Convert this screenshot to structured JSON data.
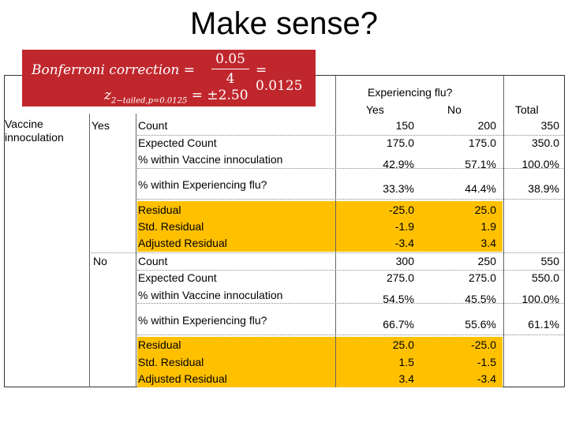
{
  "title": "Make sense?",
  "formula": {
    "line1_lhs": "Bonferroni correction =",
    "numerator": "0.05",
    "denominator": "4",
    "line1_result": "= 0.0125",
    "line2_z": "z",
    "line2_sub": "2−tailed,p=0.0125",
    "line2_rhs": "= ±2.50"
  },
  "header": {
    "group": "Experiencing flu?",
    "yes": "Yes",
    "no": "No",
    "total": "Total"
  },
  "row_var": "Vaccine innoculation",
  "groups": [
    {
      "label": "Yes",
      "rows": [
        {
          "label": "Count",
          "yes": "150",
          "no": "200",
          "total": "350"
        },
        {
          "label": "Expected Count",
          "yes": "175.0",
          "no": "175.0",
          "total": "350.0"
        },
        {
          "label": "% within Vaccine innoculation",
          "yes": "42.9%",
          "no": "57.1%",
          "total": "100.0%"
        },
        {
          "label": "% within Experiencing flu?",
          "yes": "33.3%",
          "no": "44.4%",
          "total": "38.9%"
        },
        {
          "label": "Residual",
          "yes": "-25.0",
          "no": "25.0",
          "total": ""
        },
        {
          "label": "Std. Residual",
          "yes": "-1.9",
          "no": "1.9",
          "total": ""
        },
        {
          "label": "Adjusted Residual",
          "yes": "-3.4",
          "no": "3.4",
          "total": ""
        }
      ]
    },
    {
      "label": "No",
      "rows": [
        {
          "label": "Count",
          "yes": "300",
          "no": "250",
          "total": "550"
        },
        {
          "label": "Expected Count",
          "yes": "275.0",
          "no": "275.0",
          "total": "550.0"
        },
        {
          "label": "% within Vaccine innoculation",
          "yes": "54.5%",
          "no": "45.5%",
          "total": "100.0%"
        },
        {
          "label": "% within Experiencing flu?",
          "yes": "66.7%",
          "no": "55.6%",
          "total": "61.1%"
        },
        {
          "label": "Residual",
          "yes": "25.0",
          "no": "-25.0",
          "total": ""
        },
        {
          "label": "Std. Residual",
          "yes": "1.5",
          "no": "-1.5",
          "total": ""
        },
        {
          "label": "Adjusted Residual",
          "yes": "3.4",
          "no": "-3.4",
          "total": ""
        }
      ]
    }
  ],
  "colors": {
    "highlight": "#ffc000",
    "formula_bg": "#c0272d"
  }
}
